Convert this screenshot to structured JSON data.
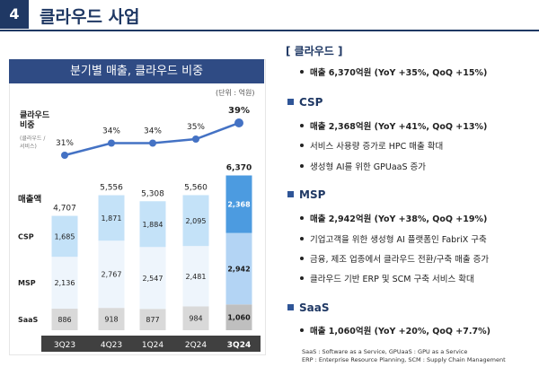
{
  "header": {
    "number": "4",
    "title": "클라우드 사업"
  },
  "chart_panel": {
    "banner": "분기별 매출, 클라우드 비중",
    "unit": "(단위 : 억원)"
  },
  "chart_data": {
    "type": "bar",
    "categories": [
      "3Q23",
      "4Q23",
      "1Q24",
      "2Q24",
      "3Q24"
    ],
    "series": [
      {
        "name": "SaaS",
        "values": [
          886,
          918,
          877,
          984,
          1060
        ]
      },
      {
        "name": "MSP",
        "values": [
          2136,
          2767,
          2547,
          2481,
          2942
        ]
      },
      {
        "name": "CSP",
        "values": [
          1685,
          1871,
          1884,
          2095,
          2368
        ]
      }
    ],
    "totals": [
      4707,
      5556,
      5308,
      5560,
      6370
    ],
    "total_labels": [
      "4,707",
      "5,556",
      "5,308",
      "5,560",
      "6,370"
    ],
    "segment_labels": {
      "SaaS": [
        "886",
        "918",
        "877",
        "984",
        "1,060"
      ],
      "MSP": [
        "2,136",
        "2,767",
        "2,547",
        "2,481",
        "2,942"
      ],
      "CSP": [
        "1,685",
        "1,871",
        "1,884",
        "2,095",
        "2,368"
      ]
    },
    "cloud_ratio": [
      31,
      34,
      34,
      35,
      39
    ],
    "cloud_ratio_labels": [
      "31%",
      "34%",
      "34%",
      "35%",
      "39%"
    ],
    "ratio_title": [
      "클라우드",
      "비중"
    ],
    "ratio_subtitle": [
      "(클라우드 /",
      "서비스)"
    ],
    "revenue_label": "매출액",
    "ylim": [
      0,
      6500
    ],
    "colors": {
      "SaaS": "#d9d9d9",
      "MSP": "#eef5fc",
      "CSP": "#c4e2f8",
      "SaaS_hl": "#bfbfbf",
      "MSP_hl": "#b3d4f4",
      "CSP_hl": "#4c9be0",
      "line": "#4472c4",
      "axis": "#404040"
    }
  },
  "right": {
    "cloud": {
      "title": "[ 클라우드 ]",
      "items": [
        "매출 6,370억원 (YoY +35%, QoQ +15%)"
      ]
    },
    "csp": {
      "title": "CSP",
      "items": [
        "매출 2,368억원 (YoY +41%, QoQ +13%)",
        "서비스 사용량 증가로 HPC 매출 확대",
        "생성형 AI를 위한 GPUaaS 증가"
      ]
    },
    "msp": {
      "title": "MSP",
      "items": [
        "매출 2,942억원 (YoY +38%, QoQ +19%)",
        "기업고객을 위한 생성형 AI 플랫폼인 FabriX 구축",
        "금융, 제조 업종에서 클라우드 전환/구축 매출 증가",
        "클라우드 기반 ERP 및 SCM 구축 서비스 확대"
      ]
    },
    "saas": {
      "title": "SaaS",
      "items": [
        "매출 1,060억원 (YoY +20%, QoQ +7.7%)"
      ]
    }
  },
  "footnote": [
    "SaaS : Software as a Service, GPUaaS : GPU as a Service",
    "ERP : Enterprise Resource Planning, SCM : Supply Chain Management"
  ]
}
